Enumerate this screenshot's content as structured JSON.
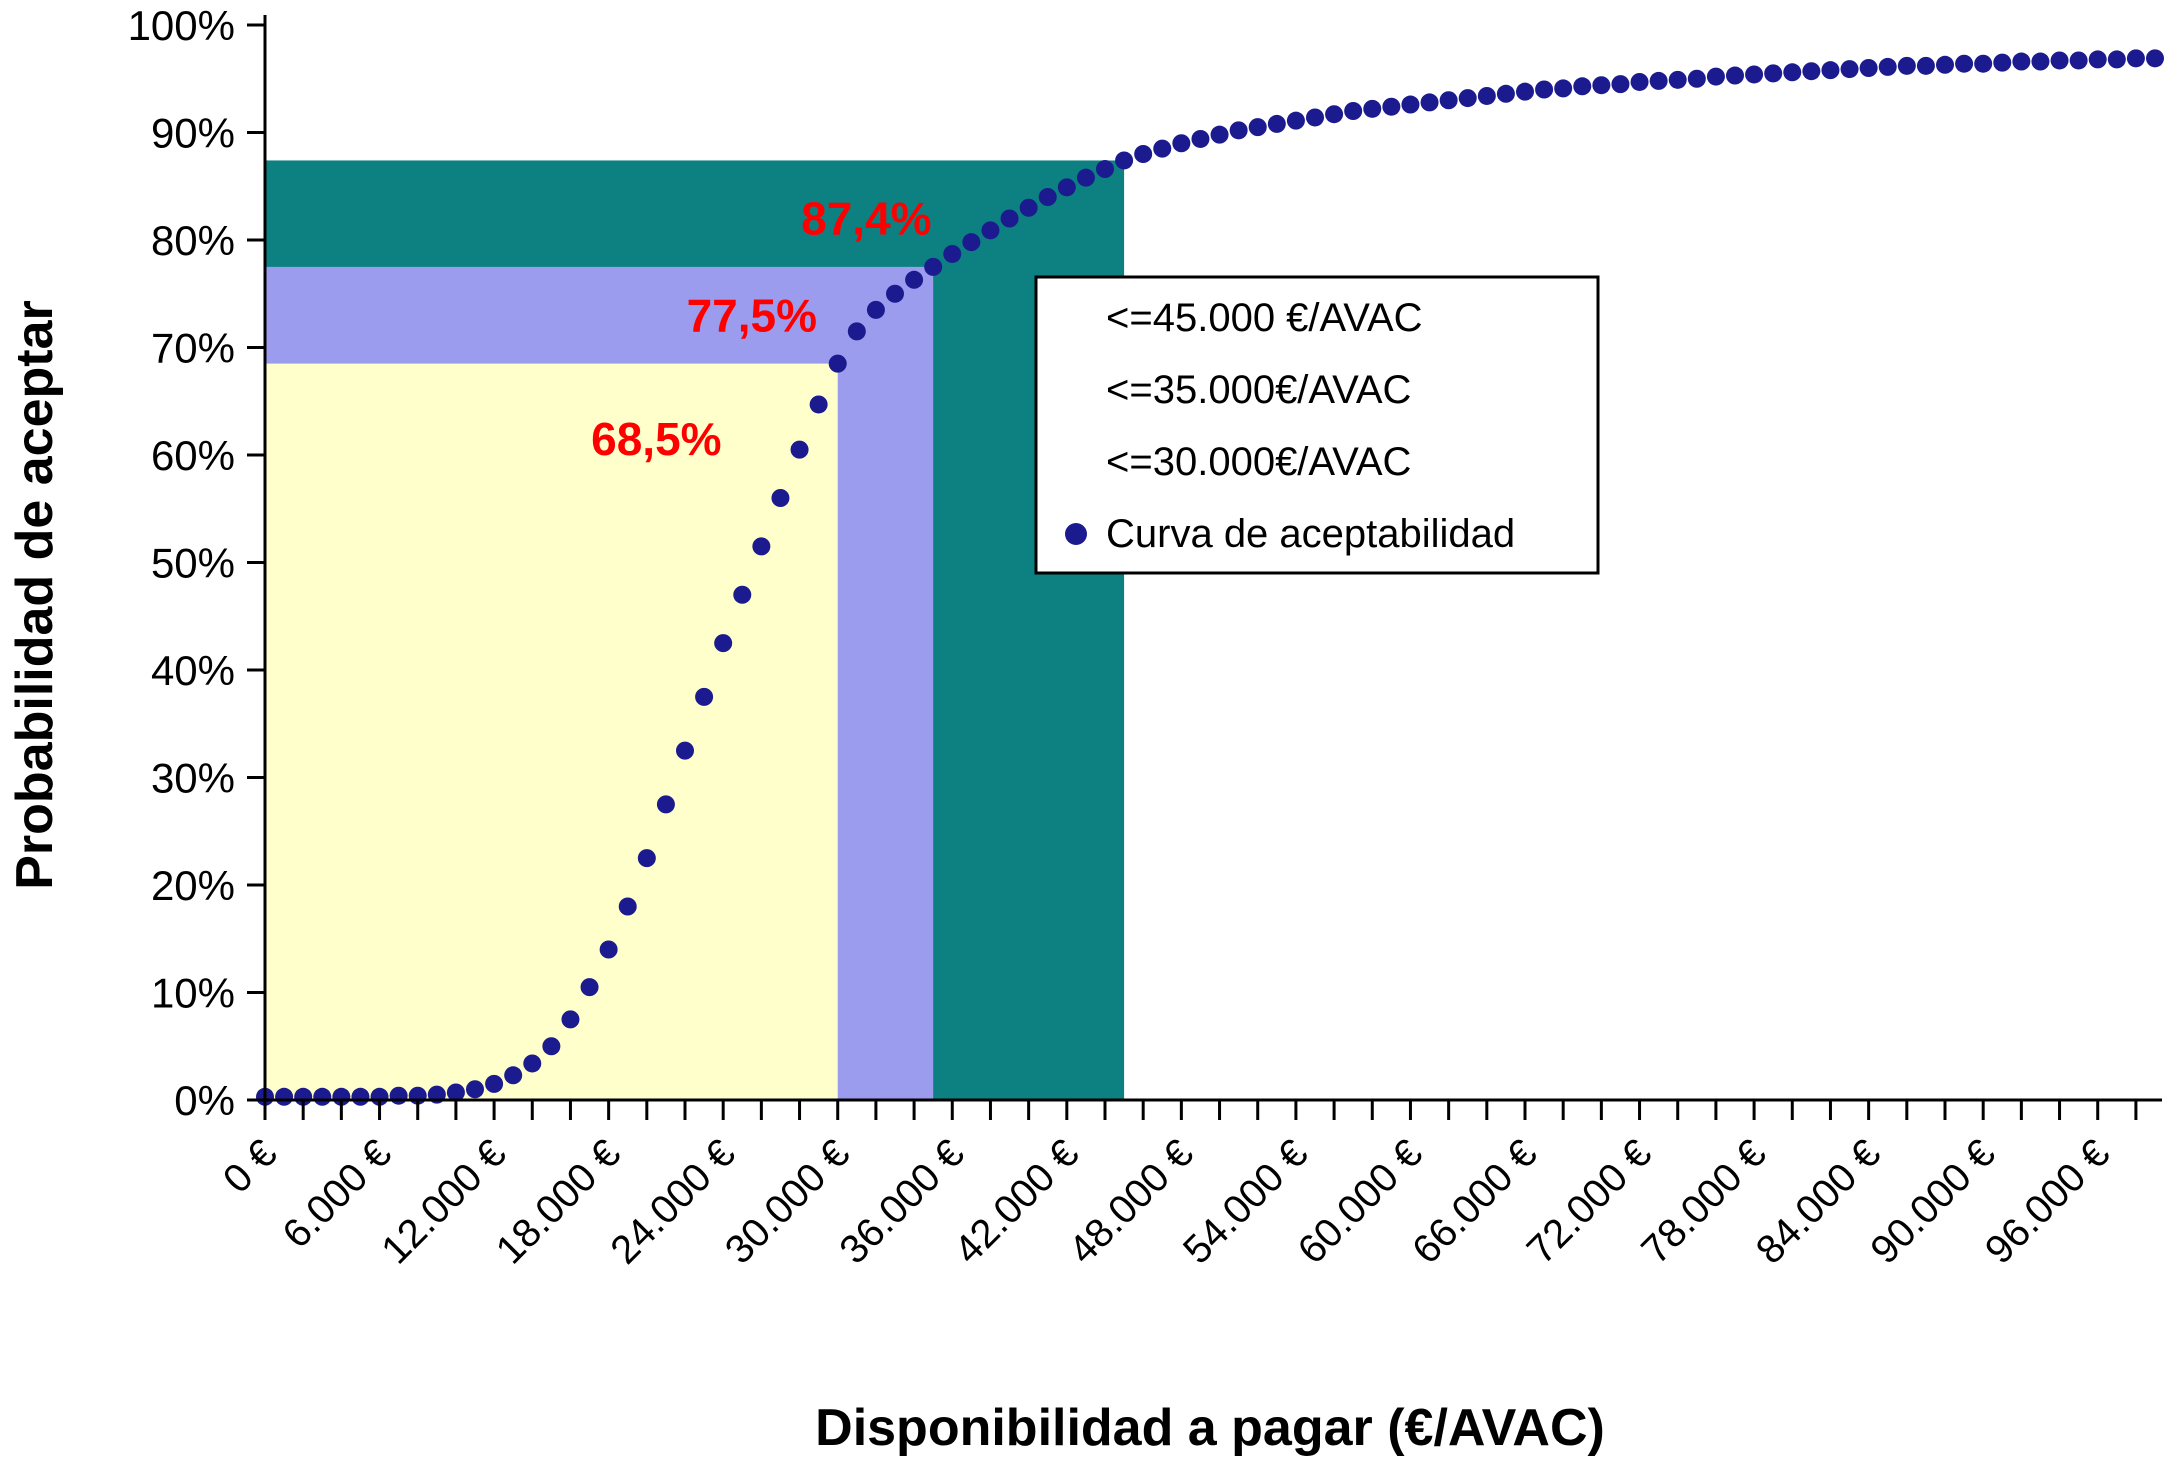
{
  "chart_data": {
    "type": "scatter",
    "title": "",
    "xlabel": "Disponibilidad a pagar (€/AVAC)",
    "ylabel": "Probabilidad de aceptar",
    "xlim": [
      0,
      99000
    ],
    "ylim_percent": [
      0,
      100
    ],
    "grid": "off",
    "background_color": "#FFFFFF",
    "axis_color": "#000000",
    "x_minor_tick_step": 2000,
    "x_ticks": [
      {
        "v": 0,
        "label": "0 €"
      },
      {
        "v": 6000,
        "label": "6.000 €"
      },
      {
        "v": 12000,
        "label": "12.000 €"
      },
      {
        "v": 18000,
        "label": "18.000 €"
      },
      {
        "v": 24000,
        "label": "24.000 €"
      },
      {
        "v": 30000,
        "label": "30.000 €"
      },
      {
        "v": 36000,
        "label": "36.000 €"
      },
      {
        "v": 42000,
        "label": "42.000 €"
      },
      {
        "v": 48000,
        "label": "48.000 €"
      },
      {
        "v": 54000,
        "label": "54.000 €"
      },
      {
        "v": 60000,
        "label": "60.000 €"
      },
      {
        "v": 66000,
        "label": "66.000 €"
      },
      {
        "v": 72000,
        "label": "72.000 €"
      },
      {
        "v": 78000,
        "label": "78.000 €"
      },
      {
        "v": 84000,
        "label": "84.000 €"
      },
      {
        "v": 90000,
        "label": "90.000 €"
      },
      {
        "v": 96000,
        "label": "96.000 €"
      }
    ],
    "y_ticks": [
      {
        "v": 0,
        "label": "0%"
      },
      {
        "v": 10,
        "label": "10%"
      },
      {
        "v": 20,
        "label": "20%"
      },
      {
        "v": 30,
        "label": "30%"
      },
      {
        "v": 40,
        "label": "40%"
      },
      {
        "v": 50,
        "label": "50%"
      },
      {
        "v": 60,
        "label": "60%"
      },
      {
        "v": 70,
        "label": "70%"
      },
      {
        "v": 80,
        "label": "80%"
      },
      {
        "v": 90,
        "label": "90%"
      },
      {
        "v": 100,
        "label": "100%"
      }
    ],
    "regions": [
      {
        "name": "region-45000",
        "label": "<=45.000 €/AVAC",
        "x_max": 45000,
        "y_max_percent": 87.4,
        "color": "#0D8181"
      },
      {
        "name": "region-35000",
        "label": "<=35.000€/AVAC",
        "x_max": 35000,
        "y_max_percent": 77.5,
        "color": "#9C9CEF"
      },
      {
        "name": "region-30000",
        "label": "<=30.000€/AVAC",
        "x_max": 30000,
        "y_max_percent": 68.5,
        "color": "#FFFFCC"
      }
    ],
    "series": {
      "name": "Curva de aceptabilidad",
      "marker": "dot",
      "color": "#1B1B8F",
      "x_start": 0,
      "x_step": 1000,
      "y_percent": [
        0.3,
        0.3,
        0.3,
        0.3,
        0.3,
        0.3,
        0.3,
        0.4,
        0.4,
        0.5,
        0.7,
        1.0,
        1.5,
        2.3,
        3.4,
        5.0,
        7.5,
        10.5,
        14.0,
        18.0,
        22.5,
        27.5,
        32.5,
        37.5,
        42.5,
        47.0,
        51.5,
        56.0,
        60.5,
        64.7,
        68.5,
        71.5,
        73.5,
        75.0,
        76.3,
        77.5,
        78.7,
        79.8,
        80.9,
        82.0,
        83.0,
        84.0,
        84.9,
        85.8,
        86.6,
        87.4,
        88.0,
        88.5,
        89.0,
        89.4,
        89.8,
        90.2,
        90.5,
        90.8,
        91.1,
        91.4,
        91.7,
        92.0,
        92.2,
        92.4,
        92.6,
        92.8,
        93.0,
        93.2,
        93.4,
        93.6,
        93.8,
        94.0,
        94.1,
        94.3,
        94.4,
        94.5,
        94.7,
        94.8,
        94.9,
        95.0,
        95.2,
        95.3,
        95.4,
        95.5,
        95.6,
        95.7,
        95.8,
        95.9,
        96.0,
        96.1,
        96.2,
        96.2,
        96.3,
        96.4,
        96.4,
        96.5,
        96.6,
        96.6,
        96.7,
        96.7,
        96.8,
        96.8,
        96.9,
        96.9
      ]
    },
    "annotations": [
      {
        "text": "87,4%",
        "x": 31500,
        "y_percent": 80.5,
        "color": "#FF0000"
      },
      {
        "text": "77,5%",
        "x": 25500,
        "y_percent": 71.5,
        "color": "#FF0000"
      },
      {
        "text": "68,5%",
        "x": 20500,
        "y_percent": 60.0,
        "color": "#FF0000"
      }
    ],
    "legend": {
      "position": "inside-upper-middle",
      "border_color": "#000000",
      "fill_color": "#FFFFFF",
      "items": [
        {
          "label": "<=45.000 €/AVAC",
          "marker": "none"
        },
        {
          "label": "<=35.000€/AVAC",
          "marker": "none"
        },
        {
          "label": "<=30.000€/AVAC",
          "marker": "none"
        },
        {
          "label": "Curva de aceptabilidad",
          "marker": "dot",
          "marker_color": "#1B1B8F"
        }
      ]
    }
  }
}
